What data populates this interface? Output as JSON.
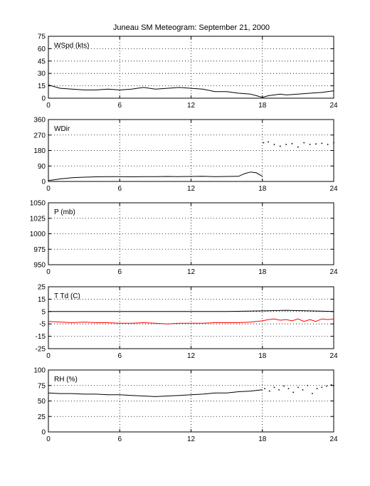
{
  "figure": {
    "title": "Juneau SM Meteogram: September 21, 2000"
  },
  "chart_data": [
    {
      "type": "line",
      "label": "WSpd (kts)",
      "xlim": [
        0,
        24
      ],
      "xticks": [
        0,
        6,
        12,
        18,
        24
      ],
      "ylim": [
        0,
        75
      ],
      "yticks": [
        0,
        15,
        30,
        45,
        60,
        75
      ],
      "grid": true,
      "series": [
        {
          "color": "#000000",
          "style": "line",
          "x": [
            0,
            1,
            2,
            3,
            4,
            5,
            6,
            7,
            8,
            9,
            10,
            11,
            12,
            13,
            14,
            15,
            16,
            17,
            17.5,
            18,
            18.5,
            19,
            19.5,
            20,
            21,
            22,
            23,
            24
          ],
          "y": [
            16,
            12,
            11,
            10,
            10,
            11,
            10,
            11,
            13,
            11,
            12,
            13,
            12,
            11,
            8,
            8,
            6,
            5,
            3,
            1,
            3,
            4,
            5,
            4,
            5,
            6,
            7,
            9
          ]
        }
      ]
    },
    {
      "type": "line",
      "label": "WDir",
      "xlim": [
        0,
        24
      ],
      "xticks": [
        0,
        6,
        12,
        18,
        24
      ],
      "ylim": [
        0,
        360
      ],
      "yticks": [
        0,
        90,
        180,
        270,
        360
      ],
      "grid": true,
      "series": [
        {
          "color": "#000000",
          "style": "line",
          "x": [
            0,
            0.5,
            1,
            2,
            3,
            4,
            5,
            6,
            7,
            8,
            9,
            10,
            11,
            12,
            13,
            14,
            15,
            16,
            16.5,
            17,
            17.5,
            18
          ],
          "y": [
            5,
            10,
            15,
            22,
            25,
            27,
            28,
            28,
            27,
            28,
            28,
            29,
            28,
            29,
            30,
            28,
            29,
            30,
            45,
            55,
            50,
            30
          ]
        },
        {
          "color": "#000000",
          "style": "dots",
          "x": [
            18.1,
            18.5,
            19,
            19.5,
            20,
            20.5,
            21,
            21.5,
            22,
            22.5,
            23,
            23.5,
            24
          ],
          "y": [
            225,
            230,
            215,
            205,
            215,
            220,
            200,
            225,
            215,
            218,
            222,
            215,
            225
          ]
        }
      ]
    },
    {
      "type": "line",
      "label": "P (mb)",
      "xlim": [
        0,
        24
      ],
      "xticks": [
        0,
        6,
        12,
        18,
        24
      ],
      "ylim": [
        950,
        1050
      ],
      "yticks": [
        950,
        975,
        1000,
        1025,
        1050
      ],
      "grid": true,
      "series": []
    },
    {
      "type": "line",
      "label": "T Td (C)",
      "xlim": [
        0,
        24
      ],
      "xticks": [
        0,
        6,
        12,
        18,
        24
      ],
      "ylim": [
        -25,
        25
      ],
      "yticks": [
        -25,
        -15,
        -5,
        5,
        15,
        25
      ],
      "grid": true,
      "series": [
        {
          "color": "#000000",
          "style": "line",
          "x": [
            0,
            3,
            6,
            9,
            12,
            15,
            18,
            20,
            22,
            24
          ],
          "y": [
            5,
            5,
            5,
            5,
            5,
            5,
            5.5,
            6,
            5.5,
            5
          ]
        },
        {
          "color": "#ff0000",
          "style": "line",
          "x": [
            0,
            1,
            2,
            3,
            4,
            5,
            6,
            7,
            8,
            9,
            10,
            11,
            12,
            13,
            14,
            15,
            16,
            17,
            18,
            18.5,
            19,
            19.5,
            20,
            20.5,
            21,
            21.5,
            22,
            22.5,
            23,
            23.5,
            24
          ],
          "y": [
            -3,
            -3.5,
            -4,
            -3.5,
            -4,
            -4,
            -4.5,
            -4.5,
            -4,
            -4.5,
            -5,
            -4.5,
            -4.5,
            -4.5,
            -4,
            -4,
            -4,
            -3.5,
            -2.5,
            -1.5,
            -1,
            -2,
            -1.5,
            -2.5,
            -1,
            -3,
            -1.5,
            -3,
            -1,
            -1.5,
            -1
          ]
        }
      ]
    },
    {
      "type": "line",
      "label": "RH (%)",
      "xlim": [
        0,
        24
      ],
      "xticks": [
        0,
        6,
        12,
        18,
        24
      ],
      "ylim": [
        0,
        100
      ],
      "yticks": [
        0,
        25,
        50,
        75,
        100
      ],
      "grid": true,
      "series": [
        {
          "color": "#000000",
          "style": "line",
          "x": [
            0,
            1,
            2,
            3,
            4,
            5,
            6,
            7,
            8,
            9,
            10,
            11,
            12,
            13,
            14,
            15,
            16,
            17,
            18
          ],
          "y": [
            63,
            62,
            62,
            61,
            61,
            60,
            60,
            59,
            58,
            57,
            58,
            59,
            60,
            61,
            63,
            63,
            65,
            66,
            68
          ]
        },
        {
          "color": "#000000",
          "style": "dots",
          "x": [
            18.2,
            18.6,
            19,
            19.4,
            19.8,
            20.2,
            20.6,
            21,
            21.4,
            21.8,
            22.2,
            22.6,
            23,
            23.4,
            23.8,
            24
          ],
          "y": [
            70,
            66,
            72,
            68,
            74,
            70,
            64,
            72,
            68,
            75,
            62,
            70,
            72,
            74,
            76,
            75
          ]
        }
      ]
    }
  ]
}
